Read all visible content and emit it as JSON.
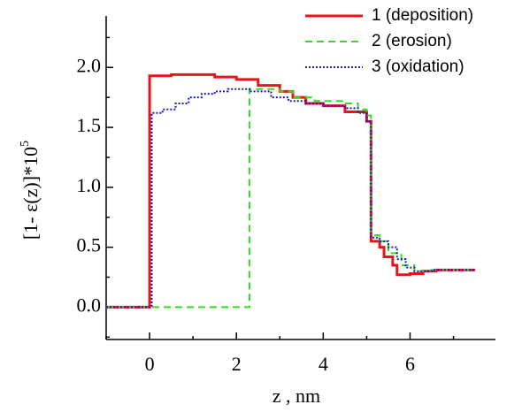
{
  "chart_data": {
    "type": "step",
    "x_label": "z , nm",
    "y_label": "[1- ε(z)]*10",
    "y_label_exponent": "5",
    "xlim": [
      -1,
      7.6
    ],
    "ylim": [
      -0.27,
      2.43
    ],
    "xticks": [
      0,
      2,
      4,
      6
    ],
    "xminorticks": [
      -1,
      1,
      3,
      5,
      7
    ],
    "yticks": [
      {
        "value": 0,
        "label": "0.0"
      },
      {
        "value": 0.5,
        "label": "0.5"
      },
      {
        "value": 1,
        "label": "1.0"
      },
      {
        "value": 1.5,
        "label": "1.5"
      },
      {
        "value": 2,
        "label": "2.0"
      }
    ],
    "yminorticks": [
      -0.25,
      0.25,
      0.75,
      1.25,
      1.75,
      2.25
    ],
    "legend": "top-right",
    "series": [
      {
        "name": "1 (deposition)",
        "color": "#e8141c",
        "dash": "",
        "width": 3,
        "x": [
          -1,
          0,
          0.5,
          1.5,
          2,
          2.5,
          3,
          3.3,
          3.6,
          4,
          4.5,
          5,
          5.1,
          5.3,
          5.4,
          5.6,
          5.7,
          6,
          6.3,
          6.6,
          7.5
        ],
        "values": [
          0,
          1.93,
          1.94,
          1.92,
          1.9,
          1.85,
          1.8,
          1.75,
          1.7,
          1.68,
          1.63,
          1.55,
          0.55,
          0.5,
          0.42,
          0.35,
          0.27,
          0.28,
          0.3,
          0.31,
          0.31
        ]
      },
      {
        "name": "2 (erosion)",
        "color": "#33dd22",
        "dash": "8 5",
        "width": 2,
        "x": [
          -1,
          2.3,
          3,
          3.3,
          3.8,
          4.5,
          4.8,
          5,
          5.1,
          5.3,
          5.5,
          5.8,
          6.1,
          6.5,
          7.5
        ],
        "values": [
          0,
          1.82,
          1.8,
          1.75,
          1.72,
          1.7,
          1.65,
          1.6,
          0.6,
          0.55,
          0.45,
          0.35,
          0.3,
          0.31,
          0.31
        ]
      },
      {
        "name": "3 (oxidation)",
        "color": "#1a1ab8",
        "dash": "2 2",
        "width": 2,
        "x": [
          -1,
          0.05,
          0.3,
          0.6,
          0.9,
          1.2,
          1.5,
          1.8,
          2.3,
          2.8,
          3.2,
          3.6,
          4,
          4.5,
          4.8,
          5,
          5.1,
          5.3,
          5.5,
          5.7,
          5.9,
          6.1,
          6.5,
          7.5
        ],
        "values": [
          0,
          1.62,
          1.65,
          1.7,
          1.75,
          1.78,
          1.8,
          1.82,
          1.8,
          1.75,
          1.72,
          1.7,
          1.68,
          1.66,
          1.62,
          1.55,
          0.58,
          0.55,
          0.5,
          0.4,
          0.33,
          0.3,
          0.31,
          0.31
        ]
      }
    ]
  }
}
